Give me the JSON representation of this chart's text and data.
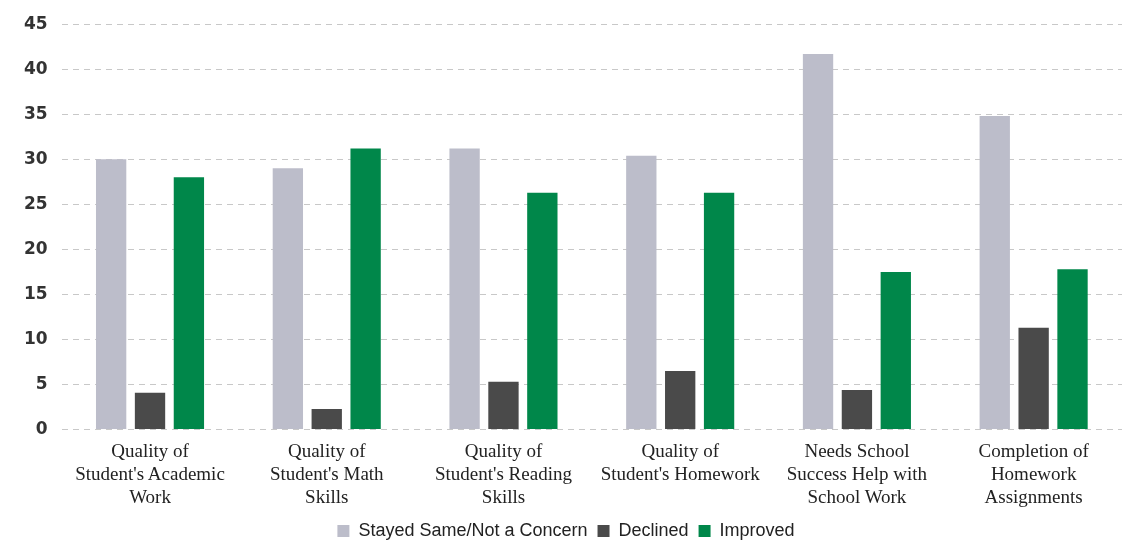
{
  "chart_data": {
    "type": "bar",
    "categories": [
      "Quality of Student's Academic Work",
      "Quality of Student's Math Skills",
      "Quality of Student's Reading Skills",
      "Quality of Student's Homework",
      "Needs School Success Help with School Work",
      "Completion of Homework Assignments"
    ],
    "series": [
      {
        "name": "Stayed Same/Not a Concern",
        "color": "#bcbdca",
        "values": [
          30,
          29,
          31.2,
          30.4,
          41.7,
          34.8
        ]
      },
      {
        "name": "Declined",
        "color": "#4a4a4a",
        "values": [
          4.1,
          2.3,
          5.3,
          6.5,
          4.4,
          11.3
        ]
      },
      {
        "name": "Improved",
        "color": "#00874a",
        "values": [
          28,
          31.2,
          26.3,
          26.3,
          17.5,
          17.8
        ]
      }
    ],
    "ylim": [
      0,
      45
    ],
    "yticks": [
      0,
      5,
      10,
      15,
      20,
      25,
      30,
      35,
      40,
      45
    ],
    "grid": "y",
    "legend": "bottom"
  }
}
